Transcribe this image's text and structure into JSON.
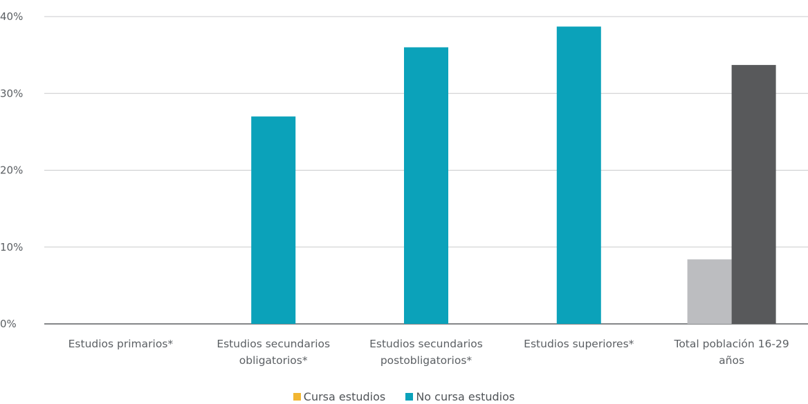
{
  "chart_data": {
    "type": "bar",
    "categories": [
      [
        "Estudios primarios*"
      ],
      [
        "Estudios secundarios",
        "obligatorios*"
      ],
      [
        "Estudios secundarios",
        "postobligatorios*"
      ],
      [
        "Estudios superiores*"
      ],
      [
        "Total población 16-29",
        "años"
      ]
    ],
    "series": [
      {
        "name": "Cursa estudios",
        "color": "#f2b632",
        "values": [
          null,
          null,
          null,
          null,
          8.4
        ]
      },
      {
        "name": "No cursa estudios",
        "color": "#0ba2ba",
        "values": [
          null,
          27.0,
          36.0,
          38.7,
          33.7
        ]
      }
    ],
    "total_bar_colors": [
      "#bcbdc0",
      "#58595b"
    ],
    "y_ticks": [
      "0%",
      "10%",
      "20%",
      "30%",
      "40%"
    ],
    "ylim": [
      0,
      40
    ],
    "grid": true,
    "legend_position": "bottom-center"
  }
}
